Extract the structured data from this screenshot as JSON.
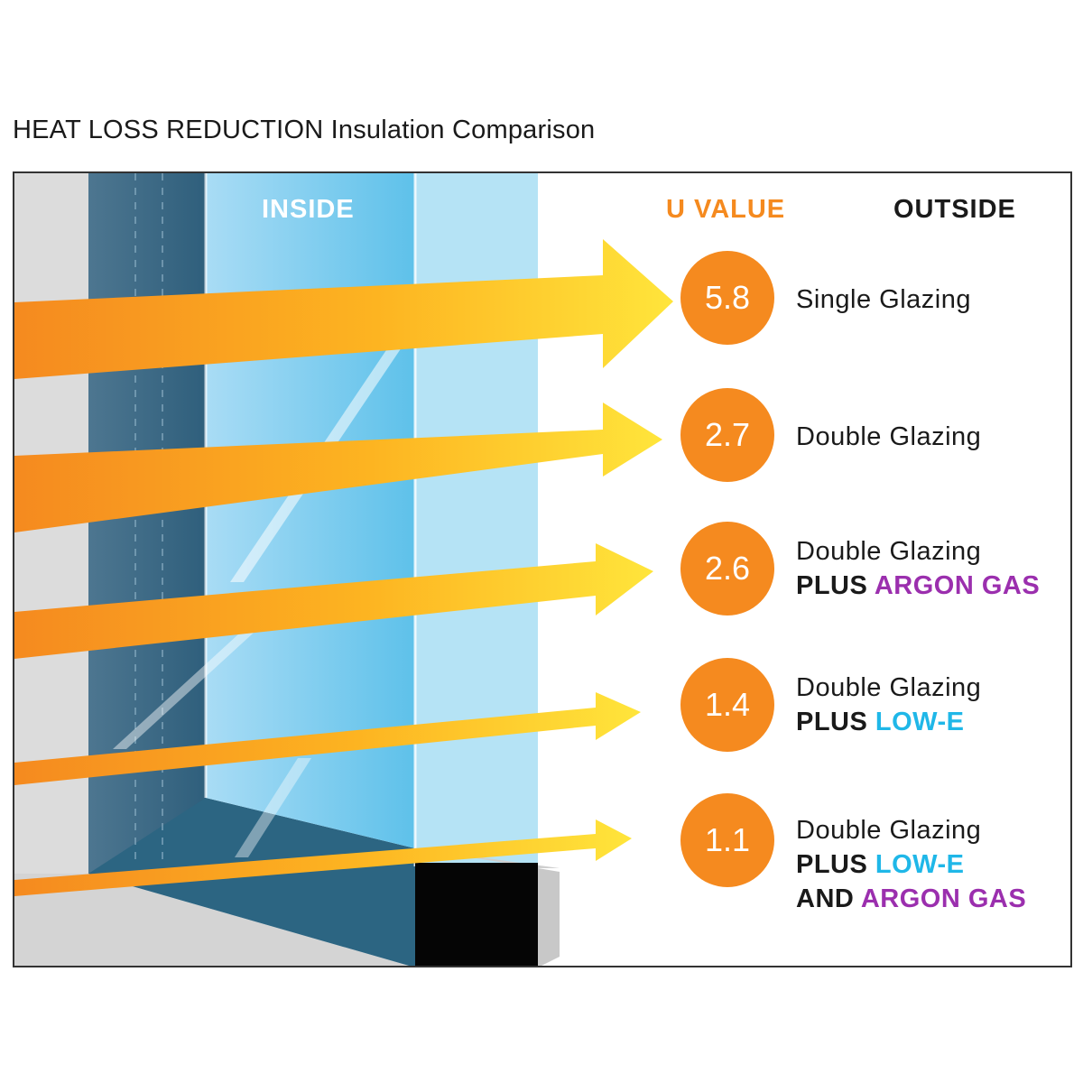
{
  "title": {
    "bold": "HEAT LOSS REDUCTION",
    "rest": "Insulation Comparison"
  },
  "headers": {
    "inside": "INSIDE",
    "u_value": "U VALUE",
    "outside": "OUTSIDE"
  },
  "colors": {
    "orange": "#f58a1f",
    "purple": "#9b2fae",
    "cyan": "#1fb7e8",
    "yellow": "#ffd21f"
  },
  "rows": [
    {
      "u": "5.8",
      "line1": "Single Glazing"
    },
    {
      "u": "2.7",
      "line1": "Double Glazing"
    },
    {
      "u": "2.6",
      "line1": "Double Glazing",
      "plus": "PLUS",
      "feature1": "ARGON GAS"
    },
    {
      "u": "1.4",
      "line1": "Double Glazing",
      "plus": "PLUS",
      "feature1": "LOW-E"
    },
    {
      "u": "1.1",
      "line1": "Double Glazing",
      "plus": "PLUS",
      "feature1": "LOW-E",
      "and": "AND",
      "feature2": "ARGON GAS"
    }
  ]
}
